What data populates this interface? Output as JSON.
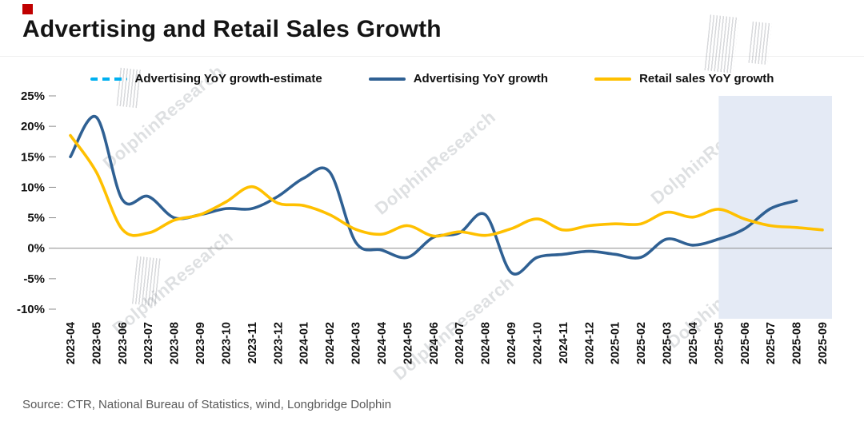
{
  "title": "Advertising and Retail Sales Growth",
  "source": "Source: CTR, National Bureau of Statistics, wind, Longbridge Dolphin",
  "watermark": {
    "text": "DolphinResearch"
  },
  "accent": {
    "red_square": "#c00000"
  },
  "chart_data": {
    "type": "line",
    "title": "Advertising and Retail Sales Growth",
    "xlabel": "",
    "ylabel": "",
    "ylim": [
      -10,
      25
    ],
    "yticks": [
      25,
      20,
      15,
      10,
      5,
      0,
      -5,
      -10
    ],
    "y_tick_suffix": "%",
    "grid": false,
    "legend_position": "top",
    "highlight_region": {
      "from": "2025-05",
      "to": "2025-09",
      "color": "#e4eaf5"
    },
    "categories": [
      "2023-04",
      "2023-05",
      "2023-06",
      "2023-07",
      "2023-08",
      "2023-09",
      "2023-10",
      "2023-11",
      "2023-12",
      "2024-01",
      "2024-02",
      "2024-03",
      "2024-04",
      "2024-05",
      "2024-06",
      "2024-07",
      "2024-08",
      "2024-09",
      "2024-10",
      "2024-11",
      "2024-12",
      "2025-01",
      "2025-02",
      "2025-03",
      "2025-04",
      "2025-05",
      "2025-06",
      "2025-07",
      "2025-08",
      "2025-09"
    ],
    "series": [
      {
        "name": "Advertising YoY growth-estimate",
        "color": "#00b0f0",
        "dash": "9 6",
        "values": [
          null,
          null,
          null,
          null,
          null,
          null,
          null,
          null,
          null,
          null,
          null,
          null,
          null,
          null,
          null,
          null,
          null,
          null,
          null,
          null,
          null,
          null,
          null,
          null,
          null,
          null,
          null,
          null,
          null,
          null
        ]
      },
      {
        "name": "Advertising YoY growth",
        "color": "#2f6093",
        "dash": null,
        "values": [
          15,
          21.5,
          8,
          8.5,
          5,
          5.5,
          6.5,
          6.5,
          8.5,
          11.5,
          12.5,
          1,
          -0.3,
          -1.5,
          1.8,
          2.5,
          5.5,
          -4,
          -1.5,
          -1,
          -0.5,
          -1,
          -1.5,
          1.5,
          0.5,
          1.5,
          3.2,
          6.5,
          7.8,
          null
        ]
      },
      {
        "name": "Retail sales YoY growth",
        "color": "#ffc000",
        "dash": null,
        "values": [
          18.5,
          12.5,
          3.1,
          2.5,
          4.6,
          5.5,
          7.6,
          10.1,
          7.4,
          7.0,
          5.5,
          3.1,
          2.3,
          3.7,
          2.0,
          2.7,
          2.1,
          3.2,
          4.8,
          3.0,
          3.7,
          4.0,
          4.0,
          5.9,
          5.1,
          6.4,
          4.8,
          3.7,
          3.4,
          3.0
        ]
      }
    ]
  }
}
